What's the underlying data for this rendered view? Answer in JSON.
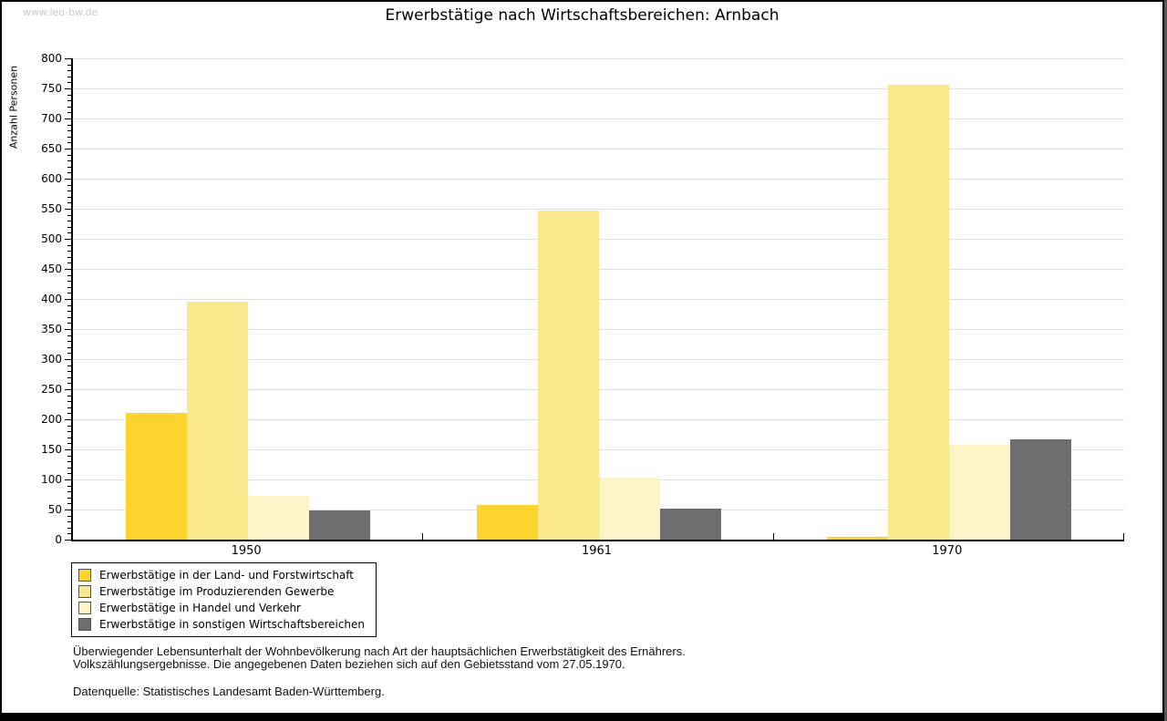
{
  "page": {
    "watermark": "www.leo-bw.de",
    "title": "Erwerbstätige nach Wirtschaftsbereichen: Arnbach",
    "notes_line1": "Überwiegender Lebensunterhalt der Wohnbevölkerung nach Art der hauptsächlichen Erwerbstätigkeit des Ernährers.",
    "notes_line2": "Volkszählungsergebnisse. Die angegebenen Daten beziehen sich auf den Gebietsstand vom 27.05.1970.",
    "source": "Datenquelle: Statistisches Landesamt Baden-Württemberg."
  },
  "colors": {
    "axis": "#000000",
    "gridline": "#e0e0e0",
    "watermark": "#c9c9c9",
    "frame_edge": "#555555",
    "legend_swatch_border": "#555555"
  },
  "chart_data": {
    "type": "bar",
    "title": "Erwerbstätige nach Wirtschaftsbereichen: Arnbach",
    "xlabel": "",
    "ylabel": "Anzahl Personen",
    "categories": [
      "1950",
      "1961",
      "1970"
    ],
    "series": [
      {
        "name": "Erwerbstätige in der Land- und Forstwirtschaft",
        "color": "#fcd42d",
        "values": [
          210,
          57,
          4
        ]
      },
      {
        "name": "Erwerbstätige im Produzierenden Gewerbe",
        "color": "#fae88c",
        "values": [
          395,
          547,
          756
        ]
      },
      {
        "name": "Erwerbstätige in Handel und Verkehr",
        "color": "#fdf4c8",
        "values": [
          72,
          103,
          157
        ]
      },
      {
        "name": "Erwerbstätige in sonstigen Wirtschaftsbereichen",
        "color": "#6e6e6e",
        "values": [
          48,
          51,
          167
        ]
      }
    ],
    "ylim": [
      0,
      800
    ],
    "ytick_step": 50,
    "yminor_step": 10,
    "grid": true,
    "legend_position": "bottom-left"
  }
}
